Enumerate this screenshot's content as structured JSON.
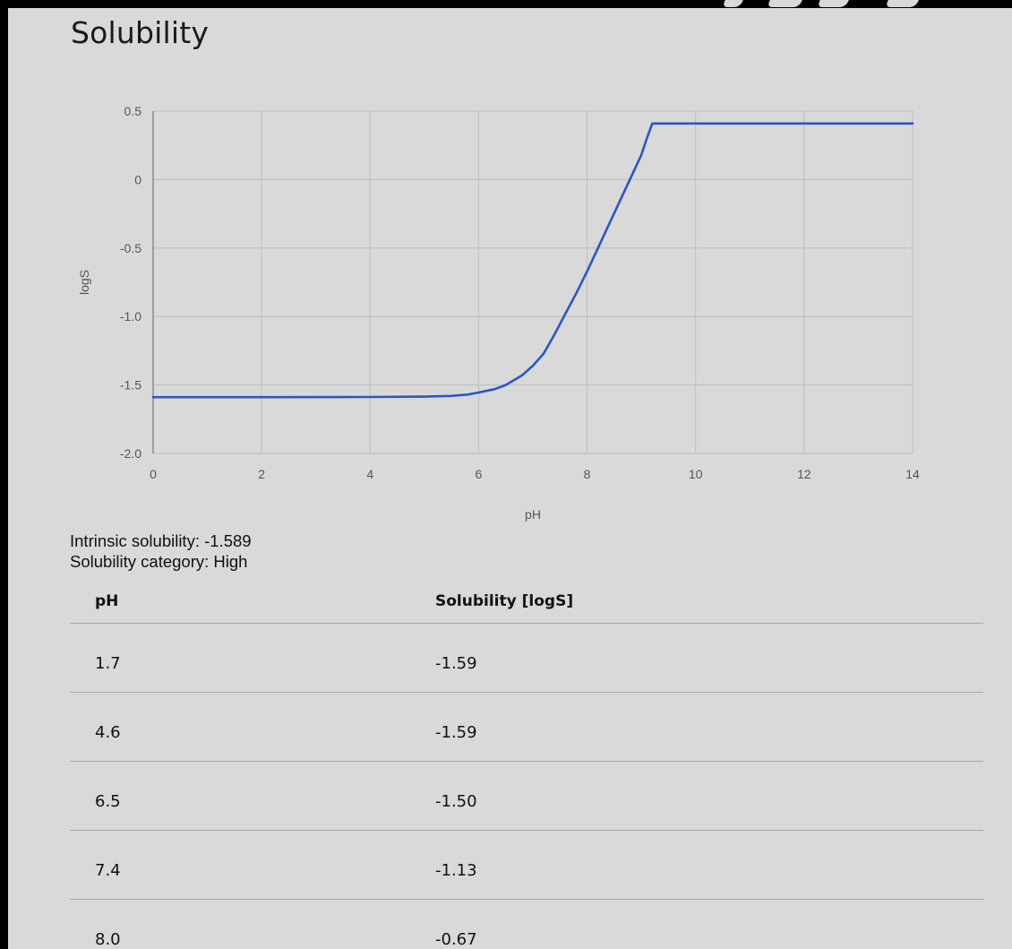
{
  "title": "Solubility",
  "chart_data": {
    "type": "line",
    "xlabel": "pH",
    "ylabel": "logS",
    "xlim": [
      0,
      14
    ],
    "ylim": [
      -2.0,
      0.5
    ],
    "x_ticks": [
      "0",
      "2",
      "4",
      "6",
      "8",
      "10",
      "12",
      "14"
    ],
    "y_ticks": [
      "0.5",
      "0",
      "-0.5",
      "-1.0",
      "-1.5",
      "-2.0"
    ],
    "grid": true,
    "line_color": "#2a56c6",
    "series": [
      {
        "x": [
          0,
          2,
          4,
          5,
          5.5,
          5.8,
          6.0,
          6.3,
          6.5,
          6.8,
          7.0,
          7.2,
          7.4,
          7.6,
          7.8,
          8.0,
          8.2,
          8.4,
          8.6,
          8.8,
          9.0,
          9.1,
          9.2,
          10,
          12,
          14
        ],
        "values": [
          -1.589,
          -1.589,
          -1.588,
          -1.585,
          -1.58,
          -1.57,
          -1.555,
          -1.53,
          -1.5,
          -1.43,
          -1.36,
          -1.27,
          -1.13,
          -0.98,
          -0.83,
          -0.67,
          -0.5,
          -0.33,
          -0.16,
          0.01,
          0.18,
          0.3,
          0.41,
          0.41,
          0.41,
          0.41
        ]
      }
    ]
  },
  "info": {
    "intrinsic_label": "Intrinsic solubility:",
    "intrinsic_value": "-1.589",
    "category_label": "Solubility category:",
    "category_value": "High"
  },
  "table": {
    "headers": [
      "pH",
      "Solubility [logS]"
    ],
    "rows": [
      [
        "1.7",
        "-1.59"
      ],
      [
        "4.6",
        "-1.59"
      ],
      [
        "6.5",
        "-1.50"
      ],
      [
        "7.4",
        "-1.13"
      ],
      [
        "8.0",
        "-0.67"
      ]
    ]
  }
}
